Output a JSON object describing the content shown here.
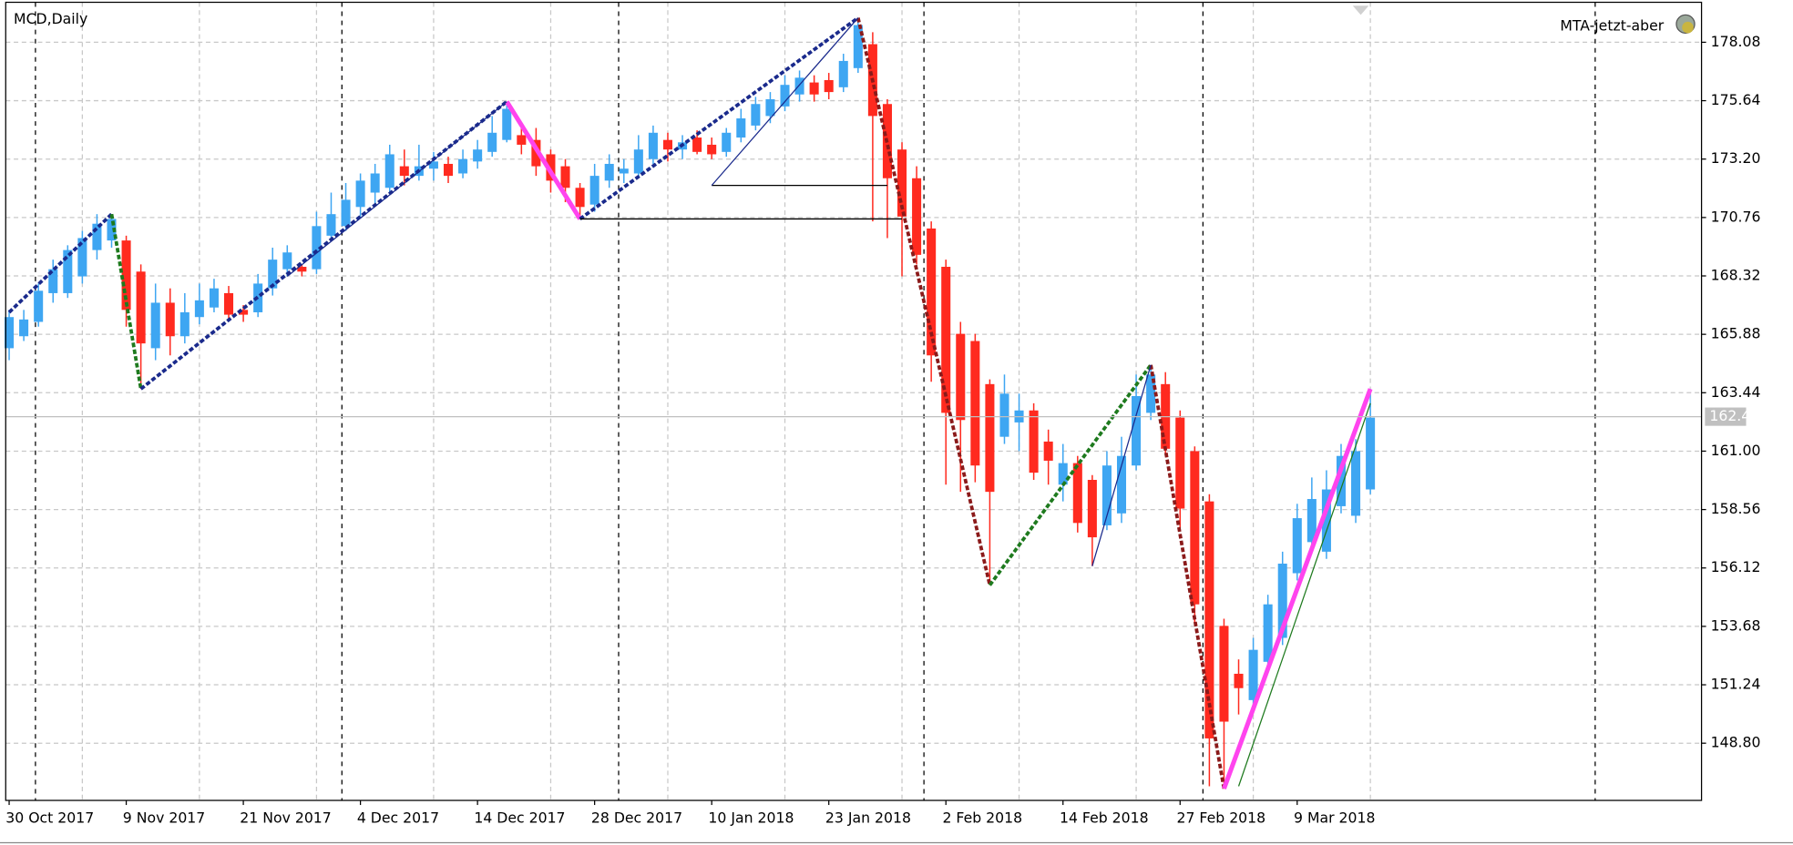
{
  "chart_data": {
    "type": "candlestick",
    "title": "MCD,Daily",
    "indicator": "MTA-jetzt-aber",
    "categories": [
      "30 Oct 2017",
      null,
      null,
      null,
      null,
      null,
      null,
      null,
      "9 Nov 2017",
      null,
      null,
      null,
      null,
      null,
      null,
      null,
      "21 Nov 2017",
      null,
      null,
      null,
      null,
      null,
      null,
      null,
      "4 Dec 2017",
      null,
      null,
      null,
      null,
      null,
      null,
      null,
      "14 Dec 2017",
      null,
      null,
      null,
      null,
      null,
      null,
      null,
      "28 Dec 2017",
      null,
      null,
      null,
      null,
      null,
      null,
      null,
      "10 Jan 2018",
      null,
      null,
      null,
      null,
      null,
      null,
      null,
      "23 Jan 2018",
      null,
      null,
      null,
      null,
      null,
      null,
      null,
      "2 Feb 2018",
      null,
      null,
      null,
      null,
      null,
      null,
      null,
      "14 Feb 2018",
      null,
      null,
      null,
      null,
      null,
      null,
      null,
      "27 Feb 2018",
      null,
      null,
      null,
      null,
      null,
      null,
      null,
      "9 Mar 2018",
      null,
      null,
      null,
      null,
      null
    ],
    "open": [
      165.3,
      165.8,
      166.4,
      167.6,
      167.6,
      168.3,
      169.4,
      169.8,
      169.8,
      168.5,
      165.3,
      167.2,
      165.8,
      166.6,
      167.0,
      167.6,
      166.9,
      166.8,
      167.8,
      168.6,
      168.7,
      168.6,
      170.0,
      170.4,
      171.2,
      171.8,
      172.0,
      172.9,
      172.5,
      172.8,
      173.0,
      172.6,
      173.1,
      173.5,
      174.0,
      174.2,
      174.0,
      173.4,
      172.9,
      172.0,
      171.3,
      172.3,
      172.6,
      172.6,
      173.2,
      174.0,
      173.6,
      174.1,
      173.8,
      173.5,
      174.1,
      174.6,
      175.0,
      175.4,
      175.9,
      176.4,
      176.5,
      176.2,
      177.0,
      178.0,
      175.5,
      173.6,
      172.4,
      170.3,
      168.7,
      165.9,
      165.6,
      163.8,
      161.6,
      162.2,
      162.7,
      161.4,
      159.6,
      160.5,
      159.8,
      157.9,
      158.4,
      160.4,
      162.6,
      163.8,
      162.4,
      161.0,
      158.9,
      153.7,
      151.7,
      150.6,
      152.2,
      153.2,
      155.9,
      157.2,
      156.8,
      158.7,
      158.3,
      159.4
    ],
    "high": [
      166.9,
      166.9,
      168.0,
      169.0,
      169.6,
      170.2,
      170.9,
      170.9,
      170.0,
      168.8,
      168.0,
      167.8,
      167.6,
      168.0,
      168.2,
      167.9,
      167.1,
      168.4,
      169.5,
      169.6,
      168.8,
      171.0,
      171.8,
      172.2,
      172.6,
      173.0,
      173.8,
      173.6,
      173.8,
      173.5,
      173.3,
      173.6,
      174.0,
      175.0,
      175.6,
      174.6,
      174.5,
      173.6,
      173.2,
      172.2,
      173.0,
      173.4,
      173.2,
      174.2,
      174.6,
      174.3,
      174.2,
      174.4,
      174.1,
      174.5,
      175.3,
      175.8,
      176.0,
      176.7,
      176.9,
      176.7,
      176.8,
      177.6,
      179.1,
      178.5,
      175.7,
      173.9,
      172.9,
      170.6,
      169.0,
      166.4,
      165.9,
      164.0,
      164.2,
      163.4,
      163.0,
      161.9,
      161.3,
      160.8,
      160.0,
      161.0,
      161.6,
      164.2,
      164.6,
      164.3,
      162.7,
      161.2,
      159.2,
      154.0,
      152.3,
      153.2,
      155.0,
      156.8,
      158.8,
      159.9,
      160.2,
      161.3,
      161.5,
      163.6
    ],
    "low": [
      164.8,
      165.6,
      166.2,
      167.2,
      167.4,
      168.0,
      169.0,
      169.5,
      166.2,
      163.6,
      164.8,
      165.0,
      165.5,
      166.3,
      166.8,
      166.5,
      166.4,
      166.6,
      167.5,
      168.3,
      168.3,
      168.4,
      169.8,
      170.2,
      170.8,
      171.3,
      171.8,
      172.1,
      172.3,
      172.3,
      172.2,
      172.4,
      172.8,
      173.3,
      173.9,
      173.4,
      172.5,
      171.8,
      171.4,
      170.7,
      171.0,
      172.0,
      172.2,
      172.4,
      173.0,
      173.1,
      173.2,
      173.4,
      173.2,
      173.3,
      173.9,
      174.4,
      174.7,
      175.2,
      175.6,
      175.6,
      175.7,
      176.0,
      176.8,
      170.6,
      169.9,
      168.3,
      168.8,
      163.9,
      159.6,
      159.3,
      159.7,
      155.4,
      161.3,
      161.0,
      159.8,
      159.6,
      158.9,
      157.6,
      156.2,
      157.7,
      158.0,
      160.2,
      162.3,
      160.8,
      157.8,
      153.7,
      147.0,
      146.9,
      150.0,
      150.3,
      151.9,
      152.9,
      155.6,
      156.9,
      156.5,
      158.4,
      158.0,
      159.2
    ],
    "close": [
      166.6,
      166.5,
      167.7,
      168.6,
      169.4,
      169.9,
      170.5,
      170.7,
      166.9,
      165.5,
      167.2,
      165.8,
      166.8,
      167.3,
      167.8,
      166.7,
      166.7,
      168.0,
      169.0,
      169.3,
      168.5,
      170.4,
      170.9,
      171.5,
      172.3,
      172.6,
      173.4,
      172.5,
      172.9,
      173.1,
      172.5,
      173.2,
      173.6,
      174.3,
      175.3,
      173.8,
      172.9,
      172.3,
      172.0,
      171.2,
      172.5,
      173.0,
      172.8,
      173.6,
      174.3,
      173.6,
      173.9,
      173.5,
      173.4,
      174.3,
      174.9,
      175.5,
      175.7,
      176.3,
      176.6,
      175.9,
      176.0,
      177.3,
      178.8,
      175.0,
      172.4,
      170.8,
      169.2,
      165.0,
      162.6,
      162.3,
      160.4,
      159.3,
      163.4,
      162.7,
      160.1,
      160.6,
      160.5,
      158.0,
      157.4,
      160.4,
      160.8,
      163.3,
      164.2,
      161.1,
      158.6,
      154.6,
      149.0,
      149.7,
      151.1,
      152.7,
      154.6,
      156.3,
      158.2,
      159.0,
      159.4,
      160.8,
      161.0,
      162.4
    ],
    "up_color": "#3ea6f2",
    "down_color": "#ff2a1f",
    "ylim": [
      146.41,
      179.75
    ],
    "yticks": [
      178.08,
      175.64,
      {
        "value": 173.2,
        "label": "173.20"
      },
      170.76,
      168.32,
      165.88,
      163.44,
      {
        "value": 161,
        "label": "161.00"
      },
      158.56,
      156.12,
      153.68,
      151.24,
      {
        "value": 148.8,
        "label": "148.80"
      }
    ],
    "current_price": 162.44,
    "grid": true,
    "lines": [
      {
        "color": "#1a2a8c",
        "dashed": true,
        "width": 3,
        "x": [
          0,
          7
        ],
        "y": [
          166.8,
          170.9
        ]
      },
      {
        "color": "#1e7a1e",
        "dashed": true,
        "width": 3,
        "x": [
          7,
          9
        ],
        "y": [
          170.9,
          163.6
        ]
      },
      {
        "color": "#1a2a8c",
        "dashed": true,
        "width": 3,
        "x": [
          9,
          34
        ],
        "y": [
          163.6,
          175.6
        ]
      },
      {
        "color": "#ff44ee",
        "dashed": false,
        "width": 4,
        "x": [
          34,
          39
        ],
        "y": [
          175.6,
          170.7
        ]
      },
      {
        "color": "#1a2a8c",
        "dashed": true,
        "width": 3,
        "x": [
          39,
          58
        ],
        "y": [
          170.7,
          179.1
        ]
      },
      {
        "color": "#8b1a1a",
        "dashed": true,
        "width": 3,
        "x": [
          58,
          67
        ],
        "y": [
          179.1,
          155.4
        ]
      },
      {
        "color": "#1e7a1e",
        "dashed": true,
        "width": 3,
        "x": [
          67,
          78
        ],
        "y": [
          155.4,
          164.6
        ]
      },
      {
        "color": "#8b1a1a",
        "dashed": true,
        "width": 3,
        "x": [
          78,
          83
        ],
        "y": [
          164.6,
          146.9
        ]
      },
      {
        "color": "#ff44ee",
        "dashed": false,
        "width": 4,
        "x": [
          83,
          93
        ],
        "y": [
          146.9,
          163.6
        ]
      },
      {
        "color": "#000000",
        "dashed": false,
        "width": 1,
        "x": [
          39,
          61
        ],
        "y": [
          170.7,
          170.7
        ]
      },
      {
        "color": "#000000",
        "dashed": false,
        "width": 1,
        "x": [
          48,
          60
        ],
        "y": [
          172.1,
          172.1
        ]
      },
      {
        "color": "#1a2a8c",
        "dashed": false,
        "width": 1,
        "x": [
          19,
          34
        ],
        "y": [
          168.3,
          175.6
        ]
      },
      {
        "color": "#1a2a8c",
        "dashed": false,
        "width": 1,
        "x": [
          48,
          58
        ],
        "y": [
          172.1,
          179.1
        ]
      },
      {
        "color": "#1a2a8c",
        "dashed": false,
        "width": 1,
        "x": [
          74,
          78
        ],
        "y": [
          156.2,
          164.6
        ]
      },
      {
        "color": "#1e7a1e",
        "dashed": false,
        "width": 1,
        "x": [
          84,
          93
        ],
        "y": [
          147.0,
          163.0
        ]
      }
    ]
  }
}
